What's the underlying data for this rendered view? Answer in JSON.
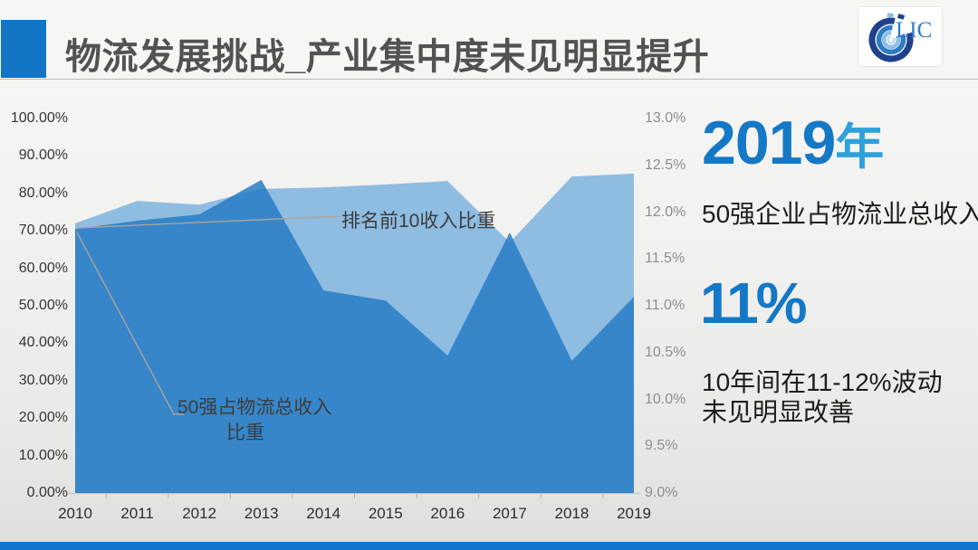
{
  "slide": {
    "title": "物流发展挑战_产业集中度未见明显提升",
    "logo_text": "LIC",
    "accent_color": "#1274C5"
  },
  "chart_data": {
    "type": "area",
    "title": "",
    "categories": [
      "2010",
      "2011",
      "2012",
      "2013",
      "2014",
      "2015",
      "2016",
      "2017",
      "2018",
      "2019"
    ],
    "series": [
      {
        "name": "排名前10收入比重",
        "color": "#8FBCE1",
        "values_left_axis_pct": [
          72.0,
          78.0,
          77.0,
          81.2,
          81.6,
          82.4,
          83.3,
          66.9,
          84.5,
          85.3
        ]
      },
      {
        "name": "50强占物流总收入比重",
        "color": "rgba(40,125,197,0.85)",
        "values_left_axis_pct": [
          70.5,
          72.7,
          74.4,
          83.6,
          54.1,
          51.4,
          36.7,
          69.6,
          35.3,
          52.4
        ]
      }
    ],
    "left_axis": {
      "min": 0,
      "max": 100,
      "labels": [
        "100.00%",
        "90.00%",
        "80.00%",
        "70.00%",
        "60.00%",
        "50.00%",
        "40.00%",
        "30.00%",
        "20.00%",
        "10.00%",
        "0.00%"
      ]
    },
    "right_axis": {
      "min": 9,
      "max": 13,
      "labels": [
        "13.0%",
        "12.5%",
        "12.0%",
        "11.5%",
        "11.0%",
        "10.5%",
        "10.0%",
        "9.5%",
        "9.0%"
      ]
    },
    "legend_position": "none",
    "grid": false,
    "annotations": [
      {
        "text": "排名前10收入比重"
      },
      {
        "line1": "50强占物流总收入",
        "line2": "比重"
      }
    ]
  },
  "panel": {
    "headline_year": "2019",
    "headline_year_suffix": "年",
    "line1": "50强企业占物流业总收入",
    "headline_pct": "11%",
    "line2a": "10年间在11-12%波动",
    "line2b": "未见明显改善"
  }
}
